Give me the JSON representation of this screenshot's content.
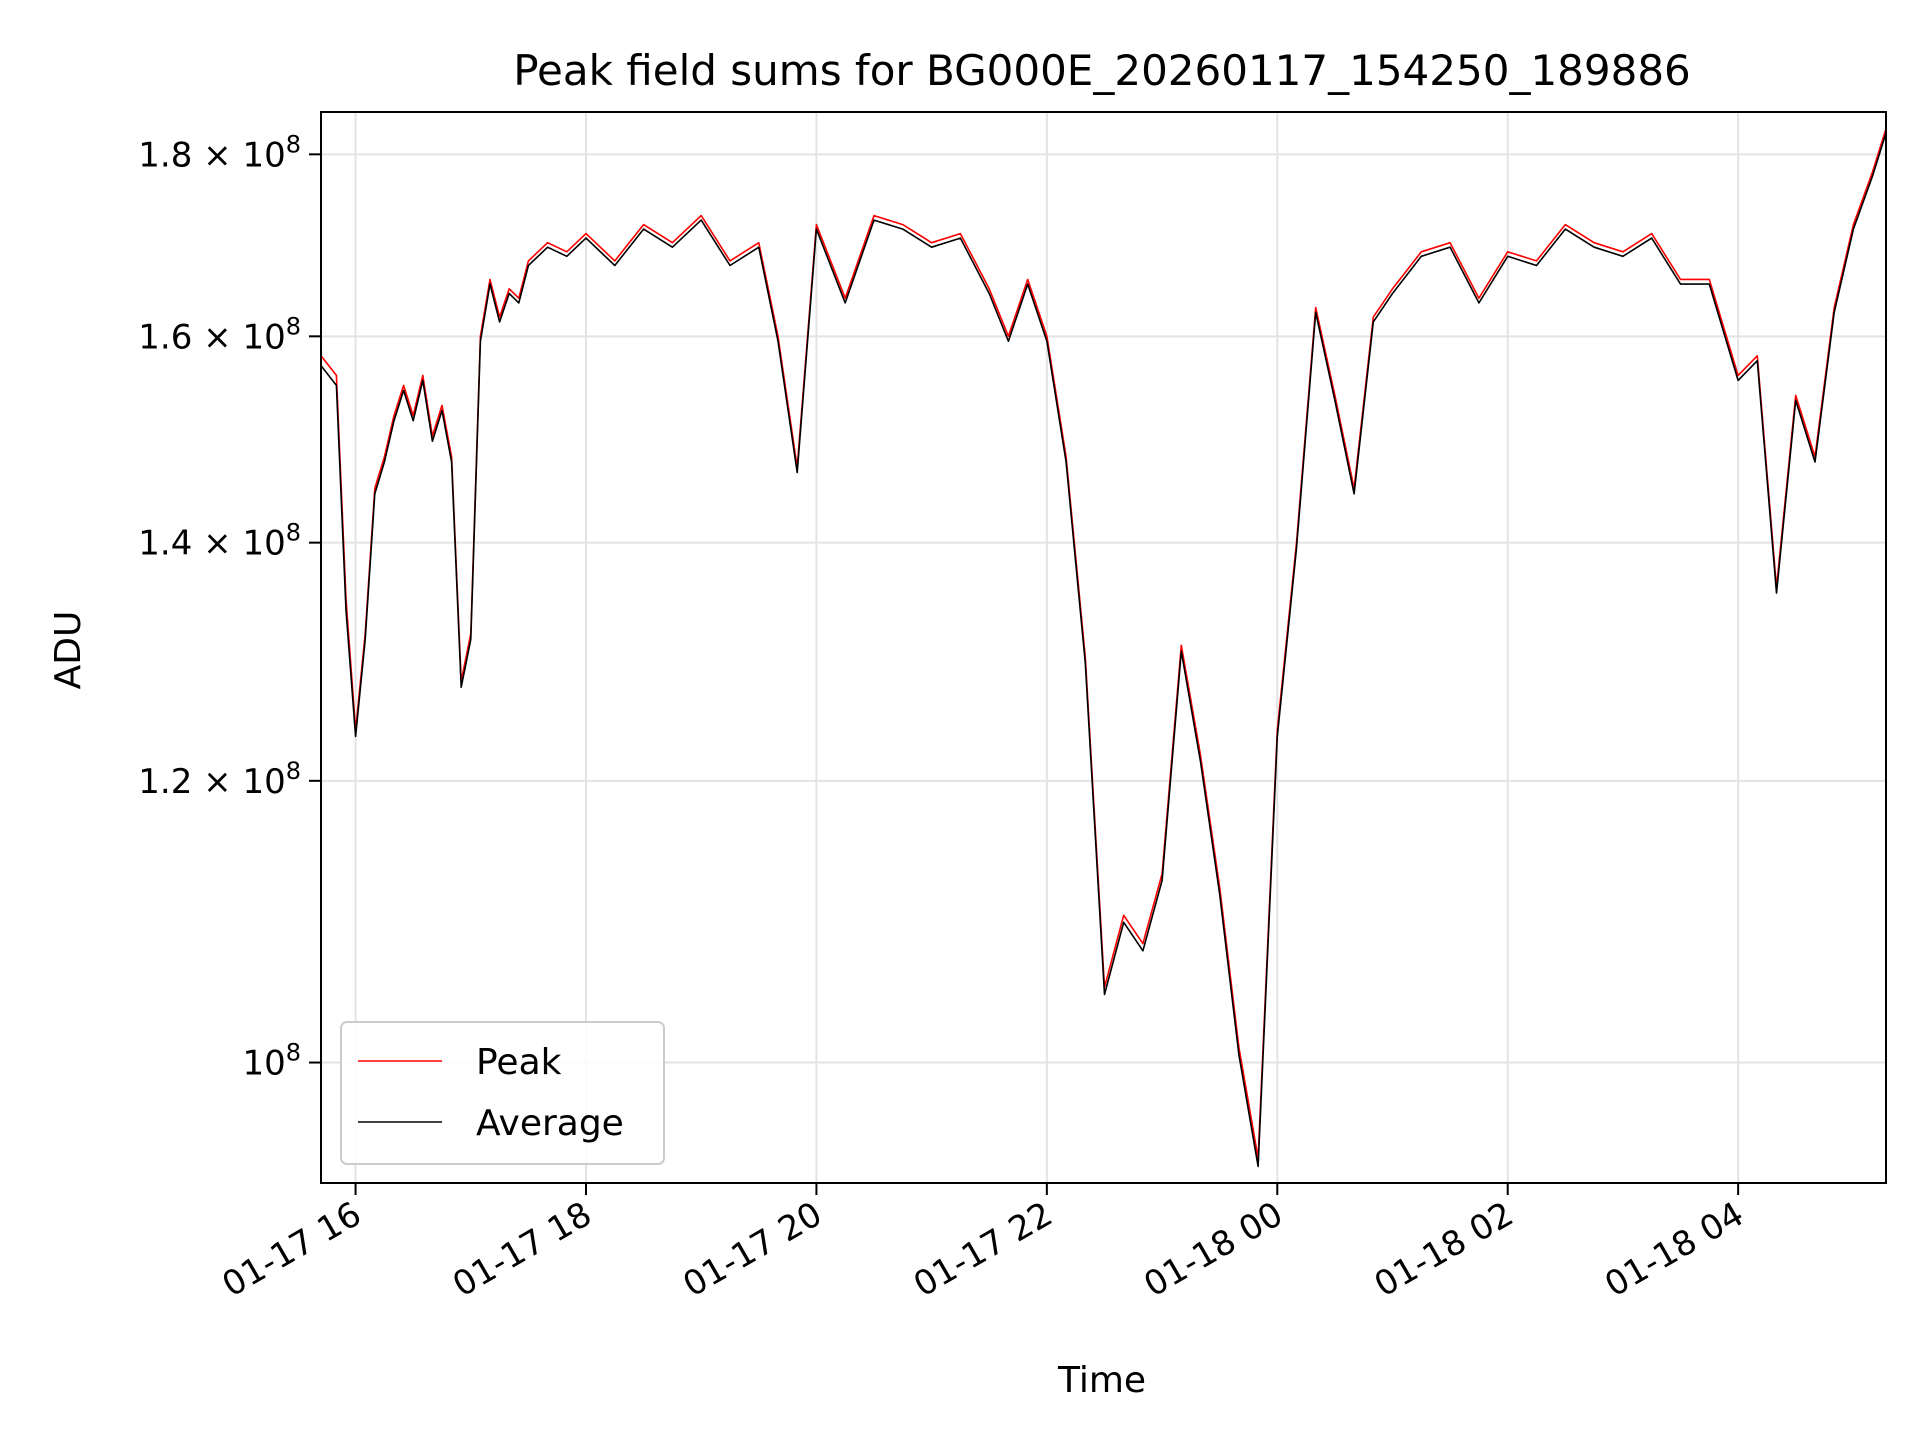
{
  "chart_data": {
    "type": "line",
    "title": "Peak field sums for BG000E_20260117_154250_189886",
    "xlabel": "Time",
    "ylabel": "ADU",
    "y_scale": "log",
    "ylim": [
      92500000,
      185000000
    ],
    "xlim": [
      "2026-01-17 15:42",
      "2026-01-18 05:17"
    ],
    "grid": true,
    "legend_position": "lower-left",
    "x_ticks": [
      "01-17 16",
      "01-17 18",
      "01-17 20",
      "01-17 22",
      "01-18 00",
      "01-18 02",
      "01-18 04"
    ],
    "y_ticks": [
      {
        "value": 100000000,
        "mantissa": "",
        "exponent": "8"
      },
      {
        "value": 120000000,
        "mantissa": "1.2",
        "exponent": "8"
      },
      {
        "value": 140000000,
        "mantissa": "1.4",
        "exponent": "8"
      },
      {
        "value": 160000000,
        "mantissa": "1.6",
        "exponent": "8"
      },
      {
        "value": 180000000,
        "mantissa": "1.8",
        "exponent": "8"
      }
    ],
    "x": [
      "2026-01-17 15:42",
      "2026-01-17 15:50",
      "2026-01-17 15:55",
      "2026-01-17 16:00",
      "2026-01-17 16:05",
      "2026-01-17 16:10",
      "2026-01-17 16:15",
      "2026-01-17 16:20",
      "2026-01-17 16:25",
      "2026-01-17 16:30",
      "2026-01-17 16:35",
      "2026-01-17 16:40",
      "2026-01-17 16:45",
      "2026-01-17 16:50",
      "2026-01-17 16:55",
      "2026-01-17 17:00",
      "2026-01-17 17:05",
      "2026-01-17 17:10",
      "2026-01-17 17:15",
      "2026-01-17 17:20",
      "2026-01-17 17:25",
      "2026-01-17 17:30",
      "2026-01-17 17:40",
      "2026-01-17 17:50",
      "2026-01-17 18:00",
      "2026-01-17 18:15",
      "2026-01-17 18:30",
      "2026-01-17 18:45",
      "2026-01-17 19:00",
      "2026-01-17 19:15",
      "2026-01-17 19:30",
      "2026-01-17 19:40",
      "2026-01-17 19:50",
      "2026-01-17 20:00",
      "2026-01-17 20:15",
      "2026-01-17 20:30",
      "2026-01-17 20:45",
      "2026-01-17 21:00",
      "2026-01-17 21:15",
      "2026-01-17 21:30",
      "2026-01-17 21:40",
      "2026-01-17 21:50",
      "2026-01-17 22:00",
      "2026-01-17 22:10",
      "2026-01-17 22:20",
      "2026-01-17 22:30",
      "2026-01-17 22:40",
      "2026-01-17 22:50",
      "2026-01-17 23:00",
      "2026-01-17 23:10",
      "2026-01-17 23:20",
      "2026-01-17 23:30",
      "2026-01-17 23:40",
      "2026-01-17 23:50",
      "2026-01-18 00:00",
      "2026-01-18 00:10",
      "2026-01-18 00:20",
      "2026-01-18 00:30",
      "2026-01-18 00:40",
      "2026-01-18 00:50",
      "2026-01-18 01:00",
      "2026-01-18 01:15",
      "2026-01-18 01:30",
      "2026-01-18 01:45",
      "2026-01-18 02:00",
      "2026-01-18 02:15",
      "2026-01-18 02:30",
      "2026-01-18 02:45",
      "2026-01-18 03:00",
      "2026-01-18 03:15",
      "2026-01-18 03:30",
      "2026-01-18 03:45",
      "2026-01-18 04:00",
      "2026-01-18 04:10",
      "2026-01-18 04:20",
      "2026-01-18 04:30",
      "2026-01-18 04:40",
      "2026-01-18 04:50",
      "2026-01-18 05:00",
      "2026-01-18 05:10",
      "2026-01-18 05:17"
    ],
    "series": [
      {
        "name": "Peak",
        "color": "#ff0000",
        "values": [
          158000000,
          156000000,
          135000000,
          124000000,
          132000000,
          145000000,
          148000000,
          152000000,
          155000000,
          152000000,
          156000000,
          150000000,
          153000000,
          148000000,
          128000000,
          132000000,
          160000000,
          166000000,
          162000000,
          165000000,
          164000000,
          168000000,
          170000000,
          169000000,
          171000000,
          168000000,
          172000000,
          170000000,
          173000000,
          168000000,
          170000000,
          160000000,
          147000000,
          172000000,
          164000000,
          173000000,
          172000000,
          170000000,
          171000000,
          165000000,
          160000000,
          166000000,
          160000000,
          148000000,
          130000000,
          105000000,
          110000000,
          108000000,
          113000000,
          131000000,
          122000000,
          112000000,
          101000000,
          94000000,
          124000000,
          140000000,
          163000000,
          154000000,
          145000000,
          162000000,
          165000000,
          169000000,
          170000000,
          164000000,
          169000000,
          168000000,
          172000000,
          170000000,
          169000000,
          171000000,
          166000000,
          166000000,
          156000000,
          158000000,
          136000000,
          154000000,
          148000000,
          163000000,
          172000000,
          178000000,
          183000000
        ]
      },
      {
        "name": "Average",
        "color": "#000000",
        "values": [
          157000000,
          155000000,
          134000000,
          123500000,
          131500000,
          144500000,
          147500000,
          151500000,
          154500000,
          151500000,
          155500000,
          149500000,
          152500000,
          147500000,
          127500000,
          131500000,
          159500000,
          165500000,
          161500000,
          164500000,
          163500000,
          167500000,
          169500000,
          168500000,
          170500000,
          167500000,
          171500000,
          169500000,
          172500000,
          167500000,
          169500000,
          159500000,
          146500000,
          171500000,
          163500000,
          172500000,
          171500000,
          169500000,
          170500000,
          164500000,
          159500000,
          165500000,
          159500000,
          147500000,
          129500000,
          104500000,
          109500000,
          107500000,
          112500000,
          130500000,
          121500000,
          111500000,
          100500000,
          93500000,
          123500000,
          139500000,
          162500000,
          153500000,
          144500000,
          161500000,
          164500000,
          168500000,
          169500000,
          163500000,
          168500000,
          167500000,
          171500000,
          169500000,
          168500000,
          170500000,
          165500000,
          165500000,
          155500000,
          157500000,
          135500000,
          153500000,
          147500000,
          162500000,
          171500000,
          177500000,
          182500000
        ]
      }
    ]
  }
}
